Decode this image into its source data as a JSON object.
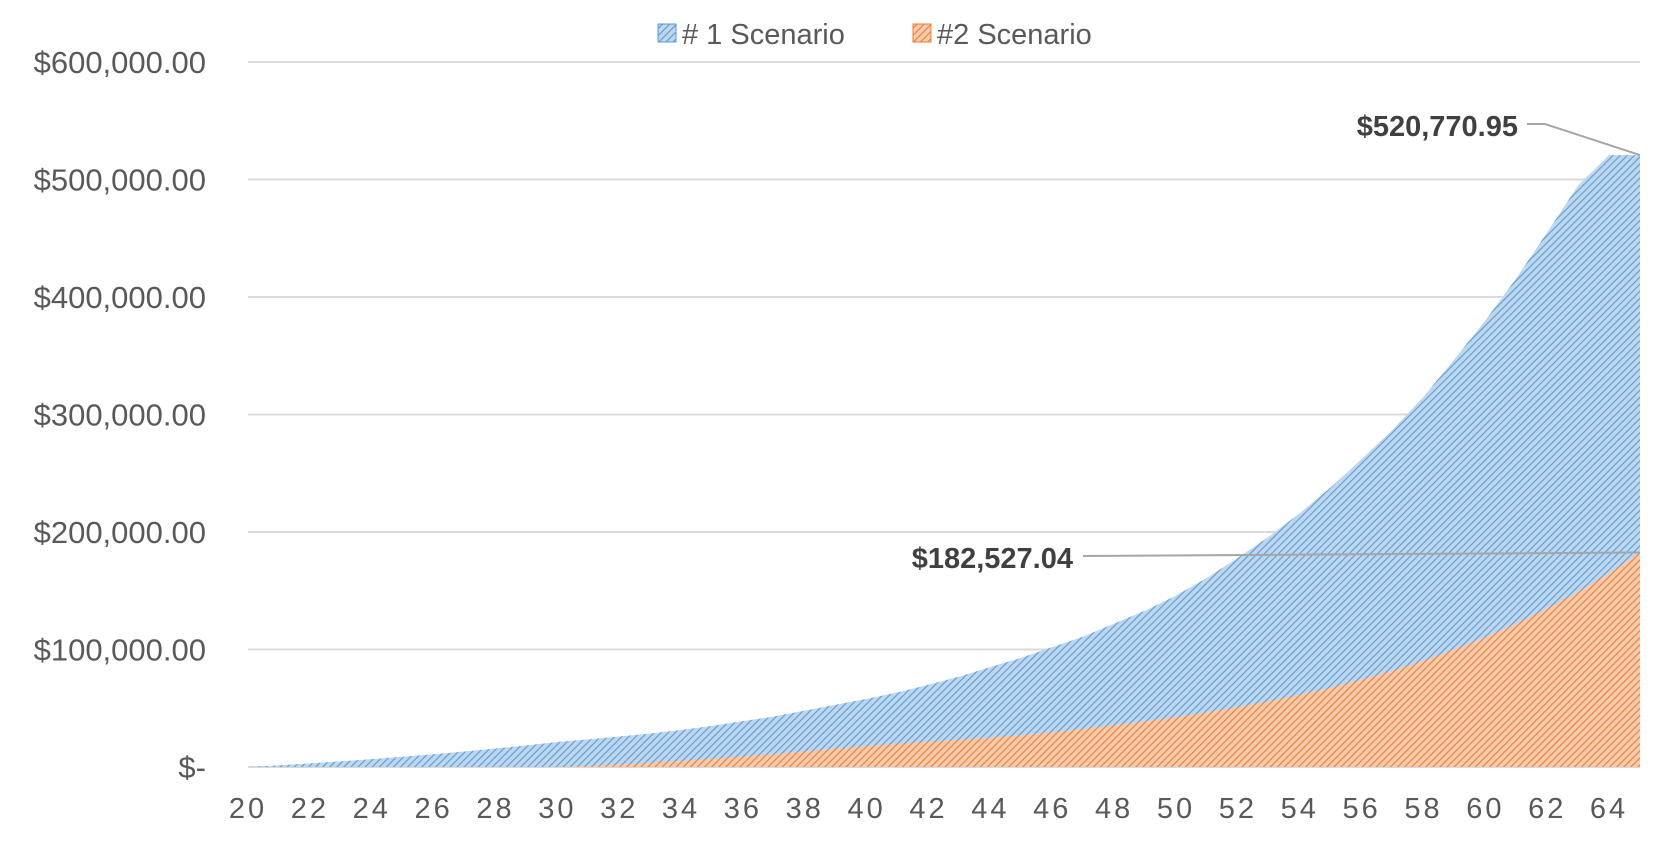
{
  "chart_data": {
    "type": "area",
    "title": "",
    "xlabel": "",
    "ylabel": "",
    "x": [
      20,
      21,
      22,
      23,
      24,
      25,
      26,
      27,
      28,
      29,
      30,
      31,
      32,
      33,
      34,
      35,
      36,
      37,
      38,
      39,
      40,
      41,
      42,
      43,
      44,
      45,
      46,
      47,
      48,
      49,
      50,
      51,
      52,
      53,
      54,
      55,
      56,
      57,
      58,
      59,
      60,
      61,
      62,
      63,
      64,
      65
    ],
    "x_ticks": [
      "20",
      "22",
      "24",
      "26",
      "28",
      "30",
      "32",
      "34",
      "36",
      "38",
      "40",
      "42",
      "44",
      "46",
      "48",
      "50",
      "52",
      "54",
      "56",
      "58",
      "60",
      "62",
      "64"
    ],
    "ylim": [
      0,
      600000
    ],
    "y_ticks": [
      {
        "value": 0,
        "label": "$-"
      },
      {
        "value": 100000,
        "label": "$100,000.00"
      },
      {
        "value": 200000,
        "label": "$200,000.00"
      },
      {
        "value": 300000,
        "label": "$300,000.00"
      },
      {
        "value": 400000,
        "label": "$400,000.00"
      },
      {
        "value": 500000,
        "label": "$500,000.00"
      },
      {
        "value": 600000,
        "label": "$600,000.00"
      }
    ],
    "grid": true,
    "legend_position": "top-center",
    "series": [
      {
        "name": "# 1 Scenario",
        "color": "#5b9bd5",
        "fill": "hatched",
        "values": [
          0,
          1500,
          3100,
          4800,
          6700,
          8700,
          10900,
          13200,
          15700,
          18400,
          21300,
          23500,
          26000,
          28500,
          31500,
          35000,
          39000,
          43000,
          48000,
          53000,
          58000,
          63500,
          70000,
          77000,
          85000,
          93000,
          102000,
          111000,
          122000,
          133000,
          146000,
          161000,
          178000,
          196000,
          216000,
          238000,
          262000,
          287000,
          315000,
          347000,
          380000,
          416000,
          455000,
          495000,
          520770.95,
          520770.95
        ]
      },
      {
        "name": "#2 Scenario",
        "color": "#ed7d31",
        "fill": "hatched",
        "values": [
          0,
          0,
          0,
          0,
          0,
          0,
          0,
          0,
          0,
          0,
          0,
          1000,
          2200,
          3600,
          5200,
          7000,
          9000,
          11000,
          13300,
          15600,
          17800,
          19800,
          21500,
          23200,
          25000,
          27000,
          29500,
          32500,
          35500,
          39000,
          42500,
          46500,
          51000,
          56000,
          61500,
          67500,
          74500,
          82000,
          90500,
          100000,
          110500,
          122000,
          135000,
          149000,
          165000,
          182527.04
        ]
      }
    ],
    "annotations": [
      {
        "series": "# 1 Scenario",
        "x": 65,
        "value": 520770.95,
        "label": "$520,770.95"
      },
      {
        "series": "#2 Scenario",
        "x": 65,
        "value": 182527.04,
        "label": "$182,527.04"
      }
    ]
  }
}
